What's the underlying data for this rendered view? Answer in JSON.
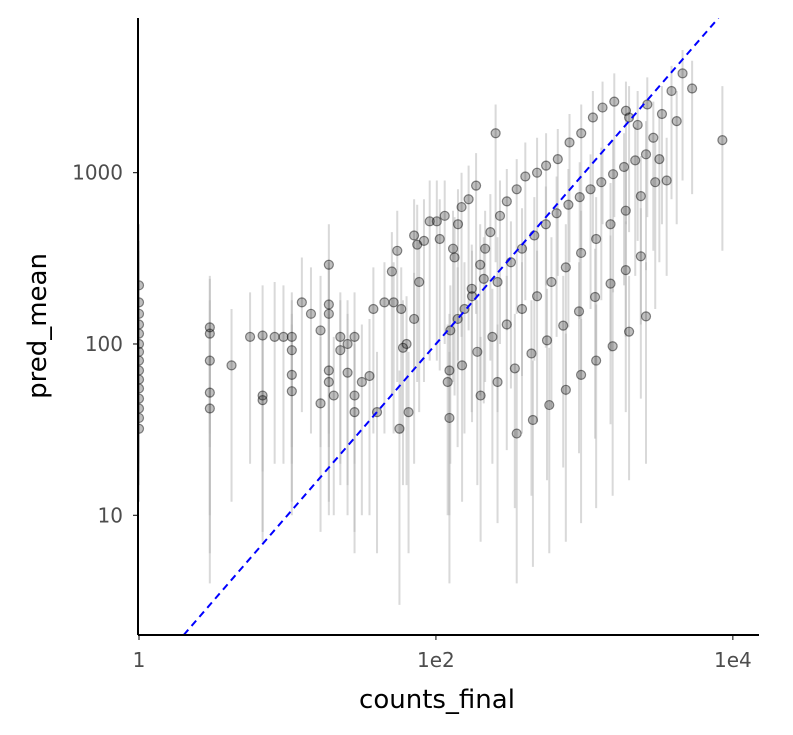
{
  "chart_data": {
    "type": "scatter",
    "title": "",
    "xlabel": "counts_final",
    "ylabel": "pred_mean",
    "x_scale": "log10",
    "y_scale": "log10",
    "xlim": [
      1,
      15000
    ],
    "ylim": [
      2,
      8000
    ],
    "x_ticks": [
      {
        "value": 1,
        "label": "1"
      },
      {
        "value": 100,
        "label": "1e2"
      },
      {
        "value": 10000,
        "label": "1e4"
      }
    ],
    "y_ticks": [
      {
        "value": 10,
        "label": "10"
      },
      {
        "value": 100,
        "label": "100"
      },
      {
        "value": 1000,
        "label": "1000"
      }
    ],
    "grid": false,
    "reference_line": {
      "style": "dashed",
      "color": "#0000ff",
      "slope": 1,
      "intercept": 0
    },
    "colors": {
      "points": "#000000",
      "errorbars": "#b3b3b3",
      "reference": "#0000ff",
      "axis": "#000000"
    },
    "series": [
      {
        "points": [
          [
            1,
            220,
            100,
            500
          ],
          [
            1,
            175,
            80,
            400
          ],
          [
            1,
            150,
            70,
            350
          ],
          [
            1,
            130,
            60,
            300
          ],
          [
            1,
            115,
            50,
            260
          ],
          [
            1,
            100,
            45,
            230
          ],
          [
            1,
            90,
            40,
            200
          ],
          [
            1,
            80,
            35,
            180
          ],
          [
            1,
            70,
            30,
            160
          ],
          [
            1,
            62,
            25,
            140
          ],
          [
            1,
            55,
            22,
            120
          ],
          [
            1,
            48,
            20,
            110
          ],
          [
            1,
            42,
            18,
            95
          ],
          [
            1,
            37,
            15,
            85
          ],
          [
            1,
            32,
            12,
            75
          ],
          [
            3,
            125,
            30,
            250
          ],
          [
            3,
            115,
            25,
            240
          ],
          [
            3,
            80,
            10,
            180
          ],
          [
            3,
            52,
            6,
            130
          ],
          [
            3,
            42,
            4,
            110
          ],
          [
            4.2,
            75,
            12,
            160
          ],
          [
            5.6,
            110,
            20,
            200
          ],
          [
            6.8,
            112,
            18,
            220
          ],
          [
            6.8,
            50,
            8,
            120
          ],
          [
            6.8,
            47,
            7,
            110
          ],
          [
            8.2,
            110,
            20,
            230
          ],
          [
            9.4,
            110,
            20,
            220
          ],
          [
            10.7,
            110,
            25,
            200
          ],
          [
            10.7,
            92,
            20,
            180
          ],
          [
            10.7,
            66,
            12,
            150
          ],
          [
            10.7,
            53,
            10,
            130
          ],
          [
            12.5,
            175,
            40,
            320
          ],
          [
            14.4,
            150,
            30,
            280
          ],
          [
            16.7,
            120,
            25,
            250
          ],
          [
            16.7,
            45,
            8,
            110
          ],
          [
            19,
            290,
            60,
            500
          ],
          [
            19,
            170,
            30,
            300
          ],
          [
            19,
            150,
            25,
            280
          ],
          [
            19,
            70,
            12,
            150
          ],
          [
            19,
            60,
            10,
            140
          ],
          [
            20.5,
            50,
            10,
            110
          ],
          [
            22.7,
            110,
            20,
            200
          ],
          [
            22.7,
            92,
            15,
            180
          ],
          [
            25.4,
            100,
            15,
            180
          ],
          [
            25.4,
            68,
            10,
            150
          ],
          [
            28.3,
            110,
            20,
            200
          ],
          [
            28.3,
            50,
            8,
            120
          ],
          [
            28.3,
            40,
            6,
            100
          ],
          [
            31.7,
            60,
            10,
            130
          ],
          [
            35.7,
            65,
            10,
            140
          ],
          [
            37.9,
            160,
            30,
            280
          ],
          [
            40.1,
            40,
            6,
            90
          ],
          [
            45,
            175,
            30,
            300
          ],
          [
            50.5,
            265,
            50,
            450
          ],
          [
            51.9,
            175,
            30,
            300
          ],
          [
            54.9,
            350,
            60,
            600
          ],
          [
            56.8,
            32,
            3,
            70
          ],
          [
            58.4,
            160,
            30,
            280
          ],
          [
            60,
            95,
            15,
            180
          ],
          [
            63.4,
            100,
            15,
            190
          ],
          [
            65.4,
            40,
            6,
            90
          ],
          [
            71.3,
            430,
            70,
            700
          ],
          [
            71.3,
            140,
            20,
            260
          ],
          [
            74.8,
            380,
            60,
            650
          ],
          [
            77.1,
            230,
            40,
            400
          ],
          [
            83.1,
            400,
            60,
            700
          ],
          [
            90.8,
            520,
            80,
            900
          ],
          [
            101.4,
            520,
            80,
            900
          ],
          [
            106.1,
            410,
            70,
            700
          ],
          [
            114.6,
            560,
            100,
            900
          ],
          [
            123.3,
            37,
            4,
            90
          ],
          [
            123.3,
            70,
            10,
            150
          ],
          [
            125,
            120,
            20,
            220
          ],
          [
            130.4,
            360,
            60,
            600
          ],
          [
            133.5,
            320,
            50,
            550
          ],
          [
            140.8,
            500,
            80,
            800
          ],
          [
            148.8,
            630,
            110,
            1000
          ],
          [
            155.7,
            160,
            30,
            300
          ],
          [
            166,
            700,
            120,
            1100
          ],
          [
            174.3,
            210,
            40,
            380
          ],
          [
            186.4,
            840,
            150,
            1300
          ],
          [
            198.7,
            290,
            50,
            500
          ],
          [
            214.5,
            360,
            60,
            600
          ],
          [
            232.6,
            450,
            80,
            750
          ],
          [
            252.4,
            1700,
            300,
            2500
          ],
          [
            270.1,
            560,
            100,
            900
          ],
          [
            300.3,
            680,
            120,
            1050
          ],
          [
            350,
            800,
            150,
            1200
          ],
          [
            400,
            950,
            180,
            1500
          ],
          [
            480,
            1000,
            200,
            1600
          ],
          [
            552,
            1100,
            220,
            1700
          ],
          [
            662,
            1200,
            250,
            1800
          ],
          [
            794,
            1500,
            300,
            2200
          ],
          [
            952,
            1700,
            350,
            2500
          ],
          [
            1141,
            2100,
            400,
            3000
          ],
          [
            1325,
            2400,
            500,
            3400
          ],
          [
            1590,
            2600,
            550,
            3800
          ],
          [
            1905,
            2300,
            500,
            3400
          ],
          [
            2000,
            2100,
            450,
            3200
          ],
          [
            2284,
            1900,
            400,
            3000
          ],
          [
            2653,
            2500,
            550,
            3600
          ],
          [
            2913,
            1600,
            350,
            2600
          ],
          [
            3199,
            1200,
            300,
            2100
          ],
          [
            3330,
            2200,
            500,
            3200
          ],
          [
            3582,
            900,
            250,
            1600
          ],
          [
            3862,
            3000,
            700,
            4200
          ],
          [
            4185,
            2000,
            500,
            3000
          ],
          [
            4583,
            3800,
            900,
            5200
          ],
          [
            5315,
            3100,
            750,
            4500
          ],
          [
            8500,
            1550,
            350,
            3200
          ],
          [
            140,
            140,
            25,
            280
          ],
          [
            175,
            190,
            35,
            350
          ],
          [
            210,
            240,
            45,
            420
          ],
          [
            260,
            230,
            40,
            420
          ],
          [
            320,
            300,
            55,
            520
          ],
          [
            380,
            360,
            65,
            620
          ],
          [
            460,
            430,
            80,
            720
          ],
          [
            550,
            500,
            95,
            830
          ],
          [
            650,
            580,
            110,
            950
          ],
          [
            780,
            650,
            125,
            1050
          ],
          [
            930,
            720,
            140,
            1150
          ],
          [
            1100,
            800,
            160,
            1280
          ],
          [
            1300,
            880,
            180,
            1400
          ],
          [
            1560,
            980,
            200,
            1550
          ],
          [
            1850,
            1080,
            220,
            1700
          ],
          [
            2200,
            1180,
            250,
            1850
          ],
          [
            2600,
            1280,
            270,
            2000
          ],
          [
            120,
            60,
            10,
            130
          ],
          [
            150,
            75,
            12,
            150
          ],
          [
            190,
            90,
            15,
            180
          ],
          [
            240,
            110,
            20,
            210
          ],
          [
            300,
            130,
            24,
            250
          ],
          [
            380,
            160,
            30,
            300
          ],
          [
            480,
            190,
            35,
            350
          ],
          [
            600,
            230,
            42,
            420
          ],
          [
            750,
            280,
            50,
            500
          ],
          [
            950,
            340,
            62,
            600
          ],
          [
            1200,
            410,
            75,
            720
          ],
          [
            1500,
            500,
            90,
            870
          ],
          [
            1900,
            600,
            110,
            1050
          ],
          [
            2400,
            730,
            130,
            1250
          ],
          [
            3000,
            880,
            160,
            1500
          ],
          [
            200,
            50,
            7,
            110
          ],
          [
            260,
            60,
            9,
            130
          ],
          [
            340,
            72,
            11,
            150
          ],
          [
            440,
            88,
            13,
            180
          ],
          [
            560,
            105,
            16,
            210
          ],
          [
            720,
            128,
            19,
            250
          ],
          [
            920,
            155,
            23,
            300
          ],
          [
            1180,
            188,
            28,
            360
          ],
          [
            1500,
            225,
            34,
            430
          ],
          [
            1900,
            270,
            40,
            520
          ],
          [
            2400,
            325,
            48,
            620
          ],
          [
            350,
            30,
            4,
            70
          ],
          [
            450,
            36,
            5,
            80
          ],
          [
            580,
            44,
            6,
            95
          ],
          [
            750,
            54,
            7,
            115
          ],
          [
            950,
            66,
            9,
            140
          ],
          [
            1200,
            80,
            11,
            170
          ],
          [
            1550,
            97,
            13,
            210
          ],
          [
            2000,
            118,
            16,
            250
          ],
          [
            2600,
            145,
            20,
            300
          ]
        ]
      }
    ]
  }
}
